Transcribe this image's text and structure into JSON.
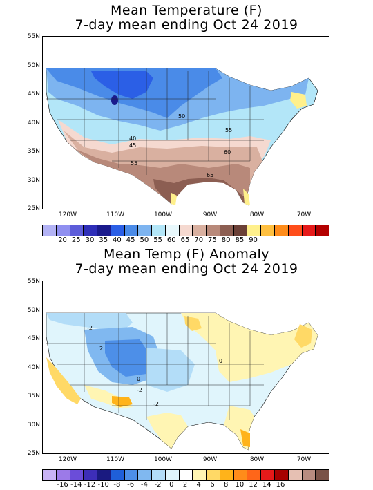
{
  "panels": {
    "temperature": {
      "title_line1": "Mean Temperature (F)",
      "title_line2": "7-day mean ending Oct 24 2019",
      "lat_labels": [
        "55N",
        "50N",
        "45N",
        "40N",
        "35N",
        "30N",
        "25N"
      ],
      "lon_labels": [
        "120W",
        "110W",
        "100W",
        "90W",
        "80W",
        "70W"
      ],
      "contour_labels": [
        "50",
        "55",
        "40",
        "45",
        "60",
        "55",
        "65"
      ],
      "colorbar_colors": [
        "#b3b3f5",
        "#8f8ff0",
        "#5c5cd9",
        "#2e2eb8",
        "#1a1a8c",
        "#2b5fe6",
        "#4a8be8",
        "#7db4f0",
        "#b3e6f8",
        "#e8f8fc",
        "#f5d9d0",
        "#d9b0a0",
        "#b8897a",
        "#8c5e52",
        "#6b4037",
        "#fff08c",
        "#ffc040",
        "#ff8c1a",
        "#ff4d1a",
        "#e61a1a",
        "#b30000"
      ],
      "colorbar_labels": [
        "20",
        "25",
        "30",
        "35",
        "40",
        "45",
        "50",
        "55",
        "60",
        "65",
        "70",
        "75",
        "80",
        "85",
        "90"
      ]
    },
    "anomaly": {
      "title_line1": "Mean Temp (F) Anomaly",
      "title_line2": "7-day mean ending Oct 24 2019",
      "lat_labels": [
        "55N",
        "50N",
        "45N",
        "40N",
        "35N",
        "30N",
        "25N"
      ],
      "lon_labels": [
        "120W",
        "110W",
        "100W",
        "90W",
        "80W",
        "70W"
      ],
      "contour_labels": [
        "-2",
        "0",
        "-2",
        "0",
        "-2",
        "2"
      ],
      "colorbar_colors": [
        "#c9b3f5",
        "#9c7ae8",
        "#6b4dd9",
        "#3d2eb8",
        "#1a1a80",
        "#1f5fd9",
        "#4d8fe8",
        "#80b8f0",
        "#b3ddf8",
        "#e0f5fc",
        "#ffffff",
        "#fff5b3",
        "#ffd966",
        "#ffb31a",
        "#ff8c1a",
        "#ff6619",
        "#e61a1a",
        "#a60000",
        "#e6c0b3",
        "#b88c80",
        "#7a5247"
      ],
      "colorbar_labels": [
        "-16",
        "-14",
        "-12",
        "-10",
        "-8",
        "-6",
        "-4",
        "-2",
        "0",
        "2",
        "4",
        "6",
        "8",
        "10",
        "12",
        "14",
        "16"
      ]
    }
  }
}
